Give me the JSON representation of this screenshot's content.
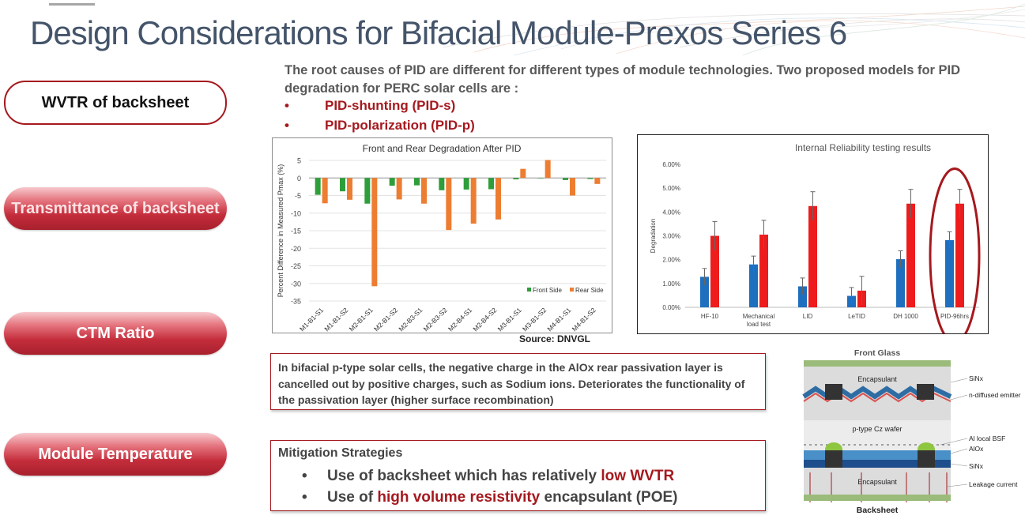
{
  "header": {
    "title": "Design Considerations for Bifacial Module-Prexos Series 6"
  },
  "intro": {
    "text": "The root causes of PID are different for different types of module technologies.  Two proposed models for PID degradation for PERC solar cells are :",
    "bullet_symbol": "•",
    "bullets": [
      "PID-shunting (PID-s)",
      "PID-polarization (PID-p)"
    ]
  },
  "sidebar": {
    "items": [
      {
        "label": "WVTR of backsheet"
      },
      {
        "label": "Transmittance of backsheet"
      },
      {
        "label": "CTM Ratio"
      },
      {
        "label": "Module Temperature"
      }
    ]
  },
  "chart_data": [
    {
      "type": "bar",
      "title": "Front and Rear Degradation After PID",
      "xlabel": "",
      "ylabel": "Percent Difference in Measured Pmax (%)",
      "ylim": [
        -35,
        5
      ],
      "yticks": [
        5,
        0,
        -5,
        -10,
        -15,
        -20,
        -25,
        -30,
        -35
      ],
      "categories": [
        "M1-B1-S1",
        "M1-B1-S2",
        "M2-B1-S1",
        "M2-B1-S2",
        "M2-B3-S1",
        "M2-B3-S2",
        "M2-B4-S1",
        "M2-B4-S2",
        "M3-B1-S1",
        "M3-B1-S2",
        "M4-B1-S1",
        "M4-B1-S2"
      ],
      "series": [
        {
          "name": "Front Side",
          "color": "#2e9e3a",
          "values": [
            -4.8,
            -3.8,
            -7.3,
            -2.2,
            -2.1,
            -3.5,
            -3.3,
            -3.2,
            -0.4,
            0.0,
            -0.6,
            -0.3
          ]
        },
        {
          "name": "Rear Side",
          "color": "#ed7d31",
          "values": [
            -7.2,
            -6.2,
            -30.8,
            -6.1,
            -7.3,
            -14.8,
            -13.0,
            -11.8,
            2.6,
            5.1,
            -5.0,
            -1.7
          ]
        }
      ],
      "legend": "bottom-right",
      "grid": true
    },
    {
      "type": "bar",
      "title": "Internal Reliability testing results",
      "xlabel": "",
      "ylabel": "Degradation",
      "ylim": [
        0,
        6
      ],
      "yticks": [
        "0.00%",
        "1.00%",
        "2.00%",
        "3.00%",
        "4.00%",
        "5.00%",
        "6.00%"
      ],
      "categories": [
        "HF-10",
        "Mechanical load test",
        "LID",
        "LeTID",
        "DH 1000",
        "PID-96hrs"
      ],
      "series": [
        {
          "color": "#1f6fbf",
          "values": [
            1.28,
            1.8,
            0.88,
            0.48,
            2.02,
            2.82
          ],
          "errors": [
            0.35,
            0.35,
            0.35,
            0.35,
            0.35,
            0.35
          ]
        },
        {
          "color": "#ee1c1c",
          "values": [
            3.0,
            3.05,
            4.25,
            0.7,
            4.35,
            4.35
          ],
          "errors": [
            0.6,
            0.6,
            0.6,
            0.6,
            0.6,
            0.6
          ]
        }
      ],
      "grid": false,
      "highlight": "PID-96hrs"
    }
  ],
  "source": "Source: DNVGL",
  "box1": {
    "text": "In bifacial p-type solar cells, the negative charge in the AlOx rear passivation layer is cancelled out by positive charges, such as Sodium ions. Deteriorates the functionality of the passivation layer (higher surface recombination)"
  },
  "mitigation": {
    "heading": "Mitigation Strategies",
    "bullet_symbol": "•",
    "items": [
      {
        "prefix": "Use of backsheet which has relatively ",
        "highlight": "low WVTR",
        "suffix": ""
      },
      {
        "prefix": "Use of ",
        "highlight": "high volume resistivity",
        "suffix": " encapsulant (POE)"
      }
    ]
  },
  "diagram": {
    "top_label": "Front Glass",
    "bottom_label": "Backsheet",
    "encapsulant_top": "Encapsulant",
    "encapsulant_bottom": "Encapsulant",
    "wafer": "p-type Cz wafer",
    "right_labels": [
      "SiNx",
      "n-diffused emitter",
      "Al local BSF",
      "AlOx",
      "SiNx",
      "Leakage current"
    ]
  },
  "colors": {
    "title": "#44546a",
    "accent_red": "#a5191e",
    "text_gray": "#595959"
  }
}
